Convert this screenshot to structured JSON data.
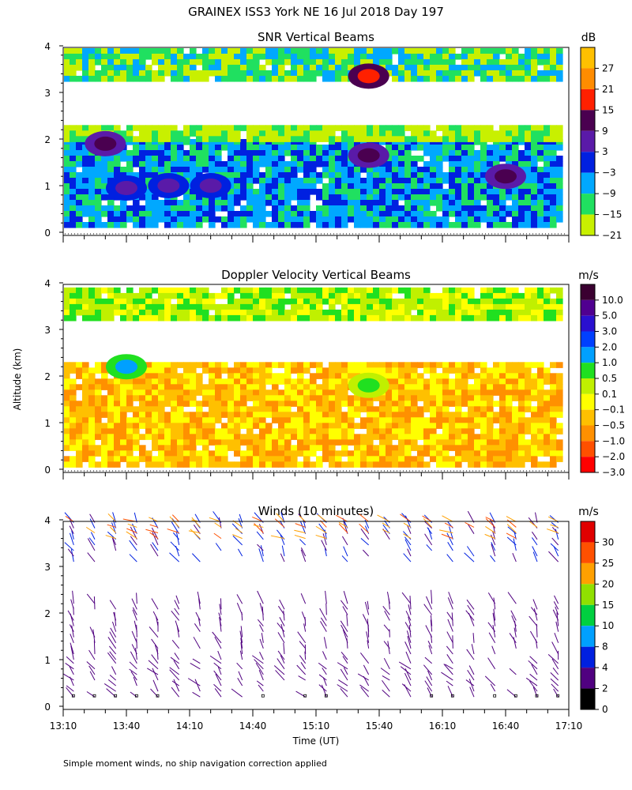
{
  "figure": {
    "title": "GRAINEX ISS3 York NE  16 Jul 2018 Day 197",
    "y_axis_label": "Altitude (km)",
    "x_axis_label": "Time (UT)",
    "footnote": "Simple moment winds, no ship navigation correction applied",
    "x_tick_labels": [
      "13:10",
      "13:40",
      "14:10",
      "14:40",
      "15:10",
      "15:40",
      "16:10",
      "16:40",
      "17:10"
    ],
    "y_tick_labels": [
      "0",
      "1",
      "2",
      "3",
      "4"
    ]
  },
  "chart_data": [
    {
      "type": "heatmap",
      "title": "SNR Vertical Beams",
      "units": "dB",
      "x_range": [
        "13:10",
        "17:10"
      ],
      "ylim": [
        0,
        4
      ],
      "colorbar_labels": [
        "27",
        "21",
        "15",
        "9",
        "3",
        "−3",
        "−9",
        "−15",
        "−21"
      ],
      "colorbar_colors": [
        "#ffc000",
        "#ff8c00",
        "#ff2000",
        "#4a0050",
        "#5a1aa8",
        "#0020e0",
        "#00a8ff",
        "#20e060",
        "#c8f000"
      ],
      "fields": [
        {
          "x": [
            "13:10",
            "17:05"
          ],
          "y": [
            0.15,
            2.0
          ],
          "level": "−9"
        },
        {
          "x": [
            "13:10",
            "17:05"
          ],
          "y": [
            3.35,
            3.95
          ],
          "level": "−15"
        },
        {
          "x": [
            "13:10",
            "17:05"
          ],
          "y": [
            2.0,
            2.3
          ],
          "level": "−21"
        }
      ],
      "features": [
        {
          "x": "13:30",
          "y": 1.9,
          "level": "9"
        },
        {
          "x": "13:40",
          "y": 0.95,
          "level": "3"
        },
        {
          "x": "14:00",
          "y": 1.0,
          "level": "3"
        },
        {
          "x": "14:20",
          "y": 1.0,
          "level": "3"
        },
        {
          "x": "15:35",
          "y": 1.65,
          "level": "9"
        },
        {
          "x": "16:40",
          "y": 1.2,
          "level": "9"
        },
        {
          "x": "15:35",
          "y": 3.35,
          "level": "15"
        }
      ]
    },
    {
      "type": "heatmap",
      "title": "Doppler Velocity Vertical Beams",
      "units": "m/s",
      "x_range": [
        "13:10",
        "17:10"
      ],
      "ylim": [
        0,
        4
      ],
      "colorbar_labels": [
        "10.0",
        "5.0",
        "3.0",
        "2.0",
        "1.0",
        "0.5",
        "0.1",
        "−0.1",
        "−0.5",
        "−1.0",
        "−2.0",
        "−3.0"
      ],
      "colorbar_colors": [
        "#3a0030",
        "#500090",
        "#2a10d0",
        "#0040ff",
        "#00a0ff",
        "#20e020",
        "#c0f000",
        "#ffff00",
        "#ffc000",
        "#ff9000",
        "#ff5000",
        "#ff0000"
      ],
      "fields": [
        {
          "x": [
            "13:10",
            "17:05"
          ],
          "y": [
            0.1,
            2.3
          ],
          "level": "−0.5"
        },
        {
          "x": [
            "13:10",
            "17:05"
          ],
          "y": [
            3.3,
            3.9
          ],
          "level": "0.1"
        }
      ],
      "features": [
        {
          "x": "13:40",
          "y": 2.2,
          "level": "1.0"
        },
        {
          "x": "15:35",
          "y": 1.8,
          "level": "0.5"
        }
      ]
    },
    {
      "type": "scatter",
      "title": "Winds (10 minutes)",
      "units": "m/s",
      "x_range": [
        "13:10",
        "17:10"
      ],
      "ylim": [
        0,
        4
      ],
      "colorbar_labels": [
        "30",
        "25",
        "20",
        "15",
        "10",
        "8",
        "4",
        "2",
        "0"
      ],
      "colorbar_colors": [
        "#e00000",
        "#ff5000",
        "#ffa000",
        "#90e000",
        "#00d040",
        "#00a0ff",
        "#0020e0",
        "#500080",
        "#000000"
      ],
      "profile_times": [
        "13:15",
        "13:25",
        "13:35",
        "13:45",
        "13:55",
        "14:05",
        "14:15",
        "14:25",
        "14:35",
        "14:45",
        "14:55",
        "15:05",
        "15:15",
        "15:25",
        "15:35",
        "15:45",
        "15:55",
        "16:05",
        "16:15",
        "16:25",
        "16:35",
        "16:45",
        "16:55",
        "17:05"
      ],
      "observations": [
        {
          "alt_km": [
            0.2,
            1.0
          ],
          "speed_ms": [
            2,
            4
          ],
          "dir_deg": 320
        },
        {
          "alt_km": [
            1.0,
            2.3
          ],
          "speed_ms": [
            2,
            4
          ],
          "dir_deg": 340
        },
        {
          "alt_km": [
            3.1,
            4.0
          ],
          "speed_ms": [
            2,
            8
          ],
          "dir_deg": 330
        },
        {
          "alt_km": [
            3.6,
            4.0
          ],
          "speed_ms": [
            20,
            30
          ],
          "dir_deg": 300
        }
      ]
    }
  ]
}
